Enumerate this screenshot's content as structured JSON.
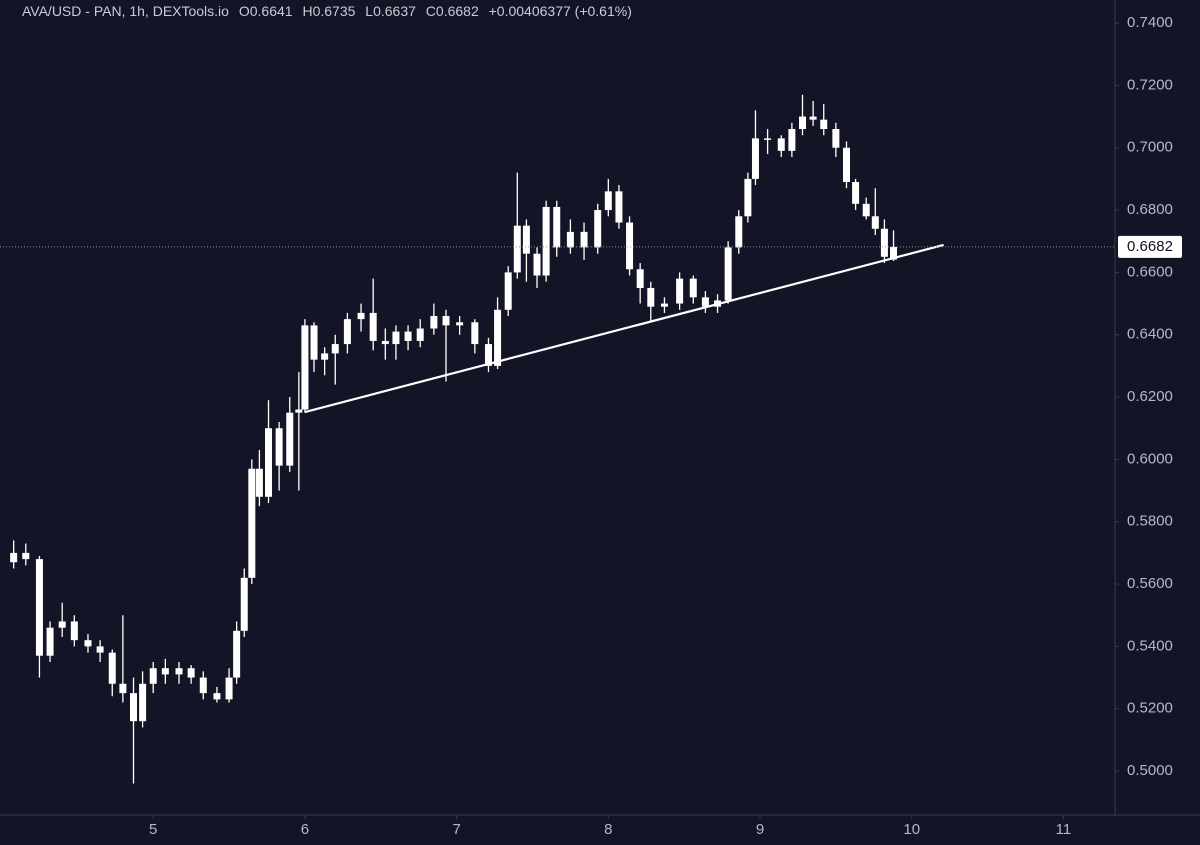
{
  "chart_data": {
    "type": "candlestick",
    "header": {
      "symbol": "AVA/USD - PAN, 1h, DEXTools.io",
      "open": "O0.6641",
      "high": "H0.6735",
      "low": "L0.6637",
      "close": "C0.6682",
      "change": "+0.00406377 (+0.61%)"
    },
    "color": "#ffffff",
    "x": [
      4.08,
      4.16,
      4.25,
      4.32,
      4.4,
      4.48,
      4.57,
      4.65,
      4.73,
      4.8,
      4.87,
      4.93,
      5.0,
      5.08,
      5.17,
      5.25,
      5.33,
      5.42,
      5.5,
      5.55,
      5.6,
      5.65,
      5.7,
      5.76,
      5.83,
      5.9,
      5.96,
      6.0,
      6.06,
      6.13,
      6.2,
      6.28,
      6.37,
      6.45,
      6.53,
      6.6,
      6.68,
      6.76,
      6.85,
      6.93,
      7.02,
      7.12,
      7.21,
      7.27,
      7.34,
      7.4,
      7.46,
      7.53,
      7.59,
      7.66,
      7.75,
      7.84,
      7.93,
      8.0,
      8.07,
      8.14,
      8.21,
      8.28,
      8.37,
      8.47,
      8.56,
      8.64,
      8.72,
      8.79,
      8.86,
      8.92,
      8.97,
      9.05,
      9.14,
      9.21,
      9.28,
      9.35,
      9.42,
      9.5,
      9.57,
      9.63,
      9.7,
      9.76,
      9.82,
      9.88
    ],
    "open": [
      0.567,
      0.57,
      0.568,
      0.537,
      0.546,
      0.548,
      0.542,
      0.54,
      0.538,
      0.528,
      0.525,
      0.516,
      0.528,
      0.533,
      0.531,
      0.533,
      0.53,
      0.525,
      0.523,
      0.53,
      0.545,
      0.562,
      0.597,
      0.588,
      0.61,
      0.598,
      0.615,
      0.616,
      0.643,
      0.632,
      0.634,
      0.637,
      0.645,
      0.647,
      0.638,
      0.637,
      0.641,
      0.638,
      0.642,
      0.646,
      0.643,
      0.644,
      0.637,
      0.63,
      0.648,
      0.66,
      0.675,
      0.666,
      0.659,
      0.681,
      0.668,
      0.673,
      0.668,
      0.68,
      0.686,
      0.676,
      0.661,
      0.655,
      0.649,
      0.65,
      0.658,
      0.652,
      0.649,
      0.651,
      0.668,
      0.678,
      0.69,
      0.703,
      0.703,
      0.699,
      0.706,
      0.71,
      0.709,
      0.706,
      0.7,
      0.689,
      0.682,
      0.678,
      0.674,
      0.6641
    ],
    "high": [
      0.574,
      0.573,
      0.569,
      0.548,
      0.554,
      0.55,
      0.544,
      0.542,
      0.539,
      0.55,
      0.53,
      0.532,
      0.535,
      0.536,
      0.535,
      0.534,
      0.532,
      0.527,
      0.533,
      0.548,
      0.565,
      0.6,
      0.603,
      0.619,
      0.612,
      0.62,
      0.628,
      0.645,
      0.644,
      0.636,
      0.64,
      0.647,
      0.65,
      0.658,
      0.642,
      0.643,
      0.643,
      0.645,
      0.65,
      0.648,
      0.646,
      0.645,
      0.639,
      0.652,
      0.662,
      0.692,
      0.677,
      0.668,
      0.683,
      0.683,
      0.677,
      0.676,
      0.682,
      0.69,
      0.688,
      0.678,
      0.663,
      0.657,
      0.652,
      0.66,
      0.659,
      0.654,
      0.653,
      0.67,
      0.68,
      0.692,
      0.712,
      0.706,
      0.704,
      0.708,
      0.717,
      0.715,
      0.714,
      0.708,
      0.702,
      0.69,
      0.684,
      0.687,
      0.677,
      0.6735
    ],
    "low": [
      0.565,
      0.566,
      0.53,
      0.535,
      0.543,
      0.54,
      0.538,
      0.535,
      0.524,
      0.522,
      0.496,
      0.514,
      0.525,
      0.528,
      0.528,
      0.528,
      0.523,
      0.522,
      0.522,
      0.528,
      0.543,
      0.56,
      0.585,
      0.586,
      0.59,
      0.596,
      0.59,
      0.615,
      0.628,
      0.627,
      0.624,
      0.634,
      0.641,
      0.635,
      0.632,
      0.632,
      0.635,
      0.636,
      0.64,
      0.625,
      0.64,
      0.634,
      0.628,
      0.629,
      0.646,
      0.658,
      0.657,
      0.655,
      0.657,
      0.665,
      0.666,
      0.664,
      0.666,
      0.678,
      0.674,
      0.659,
      0.65,
      0.644,
      0.647,
      0.648,
      0.65,
      0.647,
      0.647,
      0.65,
      0.666,
      0.676,
      0.688,
      0.698,
      0.697,
      0.697,
      0.704,
      0.707,
      0.704,
      0.697,
      0.687,
      0.68,
      0.677,
      0.672,
      0.663,
      0.6637
    ],
    "close": [
      0.57,
      0.568,
      0.537,
      0.546,
      0.548,
      0.542,
      0.54,
      0.538,
      0.528,
      0.525,
      0.516,
      0.528,
      0.533,
      0.531,
      0.533,
      0.53,
      0.525,
      0.523,
      0.53,
      0.545,
      0.562,
      0.597,
      0.588,
      0.61,
      0.598,
      0.615,
      0.616,
      0.643,
      0.632,
      0.634,
      0.637,
      0.645,
      0.647,
      0.638,
      0.637,
      0.641,
      0.638,
      0.642,
      0.646,
      0.643,
      0.644,
      0.637,
      0.63,
      0.648,
      0.66,
      0.675,
      0.666,
      0.659,
      0.681,
      0.668,
      0.673,
      0.668,
      0.68,
      0.686,
      0.676,
      0.661,
      0.655,
      0.649,
      0.65,
      0.658,
      0.652,
      0.649,
      0.651,
      0.668,
      0.678,
      0.69,
      0.703,
      0.703,
      0.699,
      0.706,
      0.71,
      0.709,
      0.706,
      0.7,
      0.689,
      0.682,
      0.678,
      0.674,
      0.665,
      0.6682
    ],
    "last_price": 0.6682,
    "trendline": {
      "x": [
        6.0,
        10.21
      ],
      "y": [
        0.6152,
        0.6688
      ]
    },
    "xlim": [
      3.99,
      11.34
    ],
    "xticks": [
      5,
      6,
      7,
      8,
      9,
      10,
      11
    ],
    "ylim": [
      0.4859,
      0.7474
    ],
    "yticks": [
      {
        "value": 0.5,
        "label": "0.5000"
      },
      {
        "value": 0.52,
        "label": "0.5200"
      },
      {
        "value": 0.54,
        "label": "0.5400"
      },
      {
        "value": 0.56,
        "label": "0.5600"
      },
      {
        "value": 0.58,
        "label": "0.5800"
      },
      {
        "value": 0.6,
        "label": "0.6000"
      },
      {
        "value": 0.62,
        "label": "0.6200"
      },
      {
        "value": 0.64,
        "label": "0.6400"
      },
      {
        "value": 0.66,
        "label": "0.6600"
      },
      {
        "value": 0.68,
        "label": "0.6800"
      },
      {
        "value": 0.7,
        "label": "0.7000"
      },
      {
        "value": 0.72,
        "label": "0.7200"
      },
      {
        "value": 0.74,
        "label": "0.7400"
      }
    ]
  }
}
